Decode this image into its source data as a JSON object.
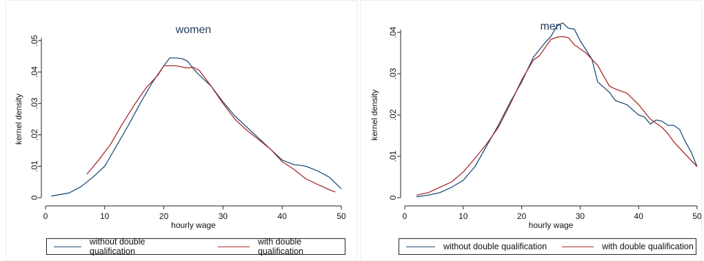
{
  "chart_data": [
    {
      "type": "line",
      "title": "women",
      "xlabel": "hourly wage",
      "ylabel": "kernel density",
      "xlim": [
        0,
        50
      ],
      "ylim": [
        0,
        0.05
      ],
      "xticks": [
        0,
        10,
        20,
        30,
        40,
        50
      ],
      "yticks": [
        0,
        0.01,
        0.02,
        0.03,
        0.04,
        0.05
      ],
      "ytick_labels": [
        "0",
        ".01",
        ".02",
        ".03",
        ".04",
        ".05"
      ],
      "grid": false,
      "legend_position": "bottom",
      "series": [
        {
          "name": "without double qualification",
          "color": "#1f4e79",
          "points": [
            [
              1,
              0.0005
            ],
            [
              4,
              0.0015
            ],
            [
              6,
              0.0035
            ],
            [
              8,
              0.0065
            ],
            [
              10,
              0.01
            ],
            [
              12,
              0.0165
            ],
            [
              14,
              0.023
            ],
            [
              16,
              0.03
            ],
            [
              18,
              0.0365
            ],
            [
              20,
              0.042
            ],
            [
              21,
              0.0445
            ],
            [
              22,
              0.0445
            ],
            [
              23,
              0.0443
            ],
            [
              24,
              0.0435
            ],
            [
              25,
              0.041
            ],
            [
              26,
              0.039
            ],
            [
              28,
              0.0355
            ],
            [
              30,
              0.0305
            ],
            [
              32,
              0.026
            ],
            [
              34,
              0.0225
            ],
            [
              36,
              0.019
            ],
            [
              38,
              0.0155
            ],
            [
              40,
              0.012
            ],
            [
              42,
              0.0105
            ],
            [
              43,
              0.0103
            ],
            [
              44,
              0.01
            ],
            [
              46,
              0.0085
            ],
            [
              48,
              0.0065
            ],
            [
              50,
              0.0028
            ]
          ]
        },
        {
          "name": "with double qualification",
          "color": "#a82a2a",
          "points": [
            [
              7,
              0.0075
            ],
            [
              9,
              0.012
            ],
            [
              11,
              0.017
            ],
            [
              13,
              0.0235
            ],
            [
              15,
              0.0295
            ],
            [
              17,
              0.035
            ],
            [
              19,
              0.039
            ],
            [
              20,
              0.042
            ],
            [
              22,
              0.042
            ],
            [
              24,
              0.0413
            ],
            [
              25,
              0.0415
            ],
            [
              26,
              0.0405
            ],
            [
              28,
              0.0355
            ],
            [
              30,
              0.03
            ],
            [
              32,
              0.025
            ],
            [
              34,
              0.0215
            ],
            [
              36,
              0.0185
            ],
            [
              38,
              0.0155
            ],
            [
              40,
              0.0115
            ],
            [
              42,
              0.009
            ],
            [
              44,
              0.006
            ],
            [
              46,
              0.0042
            ],
            [
              48,
              0.0025
            ],
            [
              49,
              0.0018
            ]
          ]
        }
      ]
    },
    {
      "type": "line",
      "title": "men",
      "xlabel": "hourly wage",
      "ylabel": "kernel density",
      "xlim": [
        0,
        50
      ],
      "ylim": [
        0,
        0.04
      ],
      "xticks": [
        0,
        10,
        20,
        30,
        40,
        50
      ],
      "yticks": [
        0,
        0.01,
        0.02,
        0.03,
        0.04
      ],
      "ytick_labels": [
        "0",
        ".01",
        ".02",
        ".03",
        ".04"
      ],
      "grid": false,
      "legend_position": "bottom",
      "series": [
        {
          "name": "without double qualification",
          "color": "#1f4e79",
          "points": [
            [
              2,
              0.0002
            ],
            [
              4,
              0.0006
            ],
            [
              6,
              0.0012
            ],
            [
              8,
              0.0025
            ],
            [
              10,
              0.0042
            ],
            [
              12,
              0.0075
            ],
            [
              14,
              0.0125
            ],
            [
              16,
              0.0175
            ],
            [
              18,
              0.023
            ],
            [
              20,
              0.028
            ],
            [
              22,
              0.034
            ],
            [
              24,
              0.0375
            ],
            [
              25,
              0.039
            ],
            [
              26,
              0.0415
            ],
            [
              27,
              0.0423
            ],
            [
              28,
              0.041
            ],
            [
              29,
              0.0408
            ],
            [
              30,
              0.038
            ],
            [
              32,
              0.0335
            ],
            [
              33,
              0.028
            ],
            [
              35,
              0.0255
            ],
            [
              36,
              0.0235
            ],
            [
              38,
              0.0225
            ],
            [
              40,
              0.02
            ],
            [
              41,
              0.0195
            ],
            [
              42,
              0.0178
            ],
            [
              43,
              0.0188
            ],
            [
              44,
              0.0185
            ],
            [
              45,
              0.0175
            ],
            [
              46,
              0.0175
            ],
            [
              47,
              0.0165
            ],
            [
              48,
              0.0135
            ],
            [
              49,
              0.011
            ],
            [
              50,
              0.0075
            ]
          ]
        },
        {
          "name": "with double qualification",
          "color": "#a82a2a",
          "points": [
            [
              2,
              0.0006
            ],
            [
              4,
              0.0012
            ],
            [
              6,
              0.0025
            ],
            [
              8,
              0.0038
            ],
            [
              10,
              0.0062
            ],
            [
              12,
              0.0095
            ],
            [
              14,
              0.013
            ],
            [
              16,
              0.017
            ],
            [
              18,
              0.0225
            ],
            [
              20,
              0.0285
            ],
            [
              22,
              0.0333
            ],
            [
              23,
              0.0343
            ],
            [
              25,
              0.0383
            ],
            [
              26,
              0.0388
            ],
            [
              27,
              0.039
            ],
            [
              28,
              0.0387
            ],
            [
              29,
              0.037
            ],
            [
              31,
              0.035
            ],
            [
              33,
              0.032
            ],
            [
              34,
              0.0295
            ],
            [
              35,
              0.027
            ],
            [
              36,
              0.0263
            ],
            [
              38,
              0.0253
            ],
            [
              40,
              0.0225
            ],
            [
              42,
              0.019
            ],
            [
              44,
              0.017
            ],
            [
              45,
              0.0155
            ],
            [
              46,
              0.0135
            ],
            [
              48,
              0.0105
            ],
            [
              50,
              0.0075
            ]
          ]
        }
      ]
    }
  ]
}
